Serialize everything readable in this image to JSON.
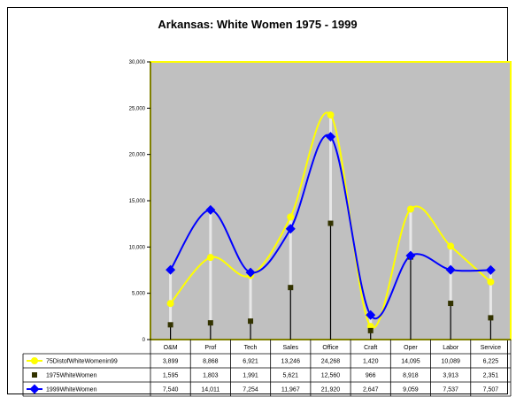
{
  "chart_data": {
    "type": "line",
    "title": "Arkansas: White Women 1975 - 1999",
    "categories": [
      "O&M",
      "Prof",
      "Tech",
      "Sales",
      "Office",
      "Craft",
      "Oper",
      "Labor",
      "Service"
    ],
    "ylim": [
      0,
      30000
    ],
    "yticks": [
      "0",
      "5,000",
      "10,000",
      "15,000",
      "20,000",
      "25,000",
      "30,000"
    ],
    "grid": false,
    "legend": "table-below",
    "series": [
      {
        "name": "75DistofWhiteWomenin99",
        "color": "#ffff00",
        "marker": "circle",
        "values": [
          3899,
          8868,
          6921,
          13246,
          24268,
          1420,
          14095,
          10089,
          6225
        ],
        "labels": [
          "3,899",
          "8,868",
          "6,921",
          "13,246",
          "24,268",
          "1,420",
          "14,095",
          "10,089",
          "6,225"
        ]
      },
      {
        "name": "1975WhiteWomen",
        "color": "#333300",
        "marker": "square",
        "values": [
          1595,
          1803,
          1991,
          5621,
          12560,
          966,
          8918,
          3913,
          2351
        ],
        "labels": [
          "1,595",
          "1,803",
          "1,991",
          "5,621",
          "12,560",
          "966",
          "8,918",
          "3,913",
          "2,351"
        ]
      },
      {
        "name": "1999WhiteWomen",
        "color": "#0000ff",
        "marker": "diamond",
        "values": [
          7540,
          14011,
          7254,
          11967,
          21920,
          2647,
          9059,
          7537,
          7507
        ],
        "labels": [
          "7,540",
          "14,011",
          "7,254",
          "11,967",
          "21,920",
          "2,647",
          "9,059",
          "7,537",
          "7,507"
        ]
      }
    ]
  }
}
